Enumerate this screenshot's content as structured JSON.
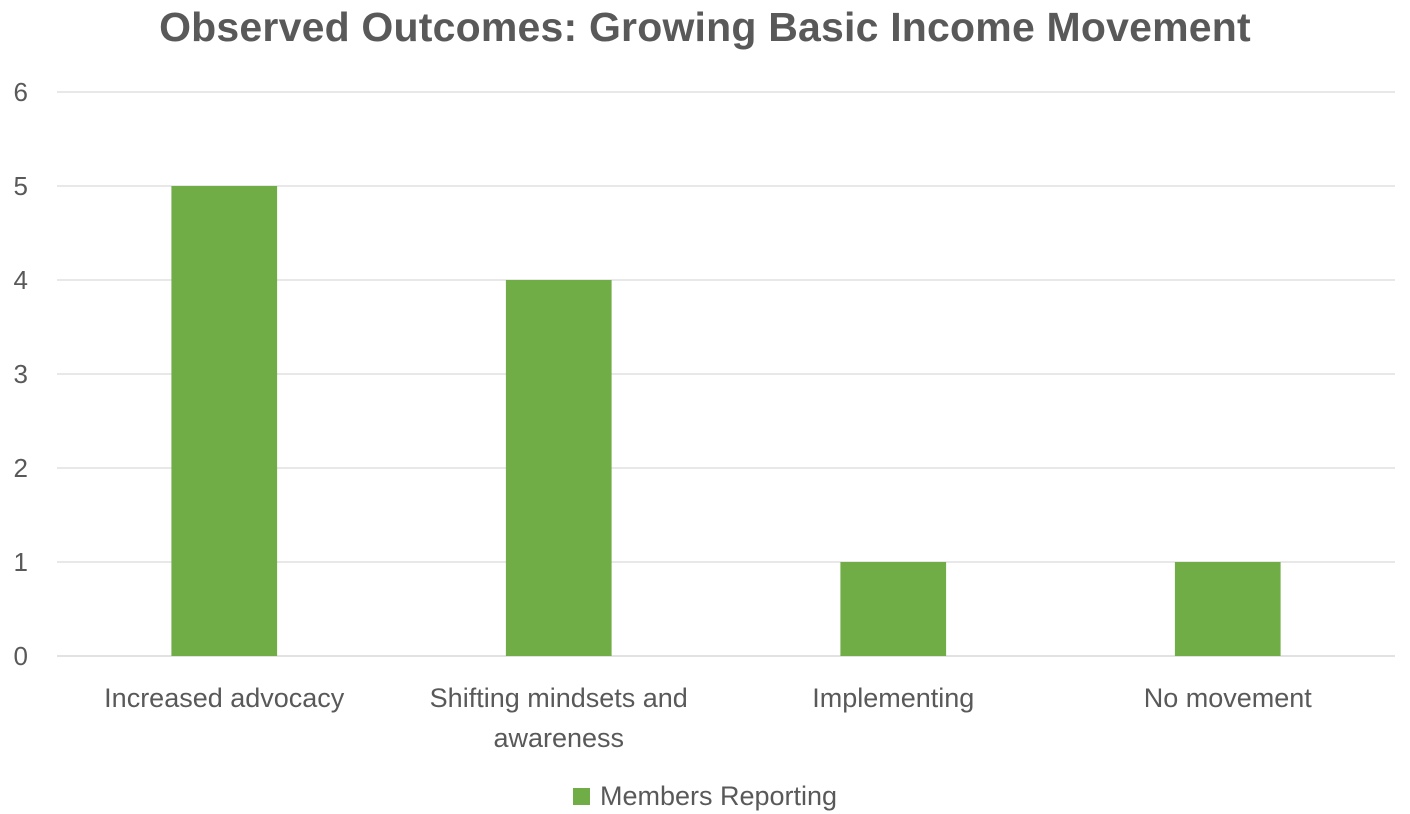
{
  "chart_data": {
    "type": "bar",
    "title": "Observed Outcomes: Growing Basic Income Movement",
    "categories": [
      [
        "Increased advocacy"
      ],
      [
        "Shifting mindsets and",
        "awareness"
      ],
      [
        "Implementing"
      ],
      [
        "No movement"
      ]
    ],
    "series": [
      {
        "name": "Members Reporting",
        "values": [
          5,
          4,
          1,
          1
        ],
        "color": "#70ad47"
      }
    ],
    "ylim": [
      0,
      6
    ],
    "yticks": [
      "0",
      "1",
      "2",
      "3",
      "4",
      "5",
      "6"
    ],
    "grid": true,
    "gridColor": "#d9d9d9",
    "legend_position": "bottom"
  }
}
